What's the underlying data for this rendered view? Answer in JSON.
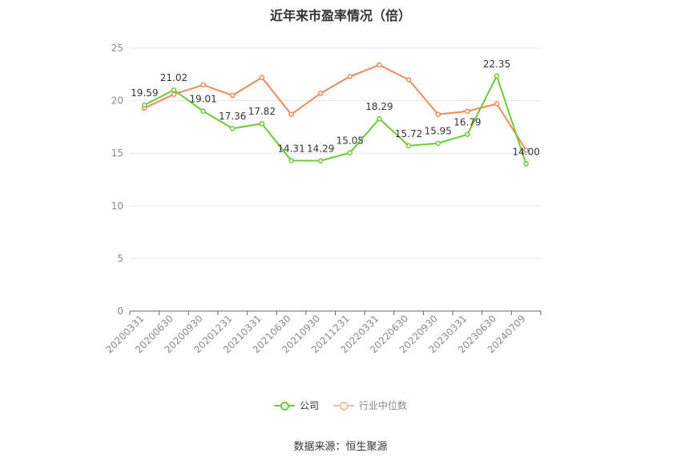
{
  "chart_data": {
    "type": "line",
    "title": "近年来市盈率情况（倍）",
    "categories": [
      "20200331",
      "20200630",
      "20200930",
      "20201231",
      "20210331",
      "20210630",
      "20210930",
      "20211231",
      "20220331",
      "20220630",
      "20220930",
      "20230331",
      "20230630",
      "20240709"
    ],
    "series": [
      {
        "name": "公司",
        "color": "#6dc935",
        "values": [
          19.59,
          21.02,
          19.01,
          17.36,
          17.82,
          14.31,
          14.29,
          15.05,
          18.29,
          15.72,
          15.95,
          16.79,
          22.35,
          14.0
        ],
        "labels": [
          "19.59",
          "21.02",
          "19.01",
          "17.36",
          "17.82",
          "14.31",
          "14.29",
          "15.05",
          "18.29",
          "15.72",
          "15.95",
          "16.79",
          "22.35",
          "14.00"
        ]
      },
      {
        "name": "行业中位数",
        "color": "#f0895a",
        "values": [
          19.3,
          20.6,
          21.5,
          20.5,
          22.2,
          18.7,
          20.7,
          22.3,
          23.4,
          22.0,
          18.7,
          19.0,
          19.7,
          15.3
        ]
      }
    ],
    "ylim": [
      0,
      25
    ],
    "yticks": [
      0,
      5,
      10,
      15,
      20,
      25
    ],
    "grid": true,
    "legend_position": "bottom"
  },
  "source": "数据来源：恒生聚源"
}
